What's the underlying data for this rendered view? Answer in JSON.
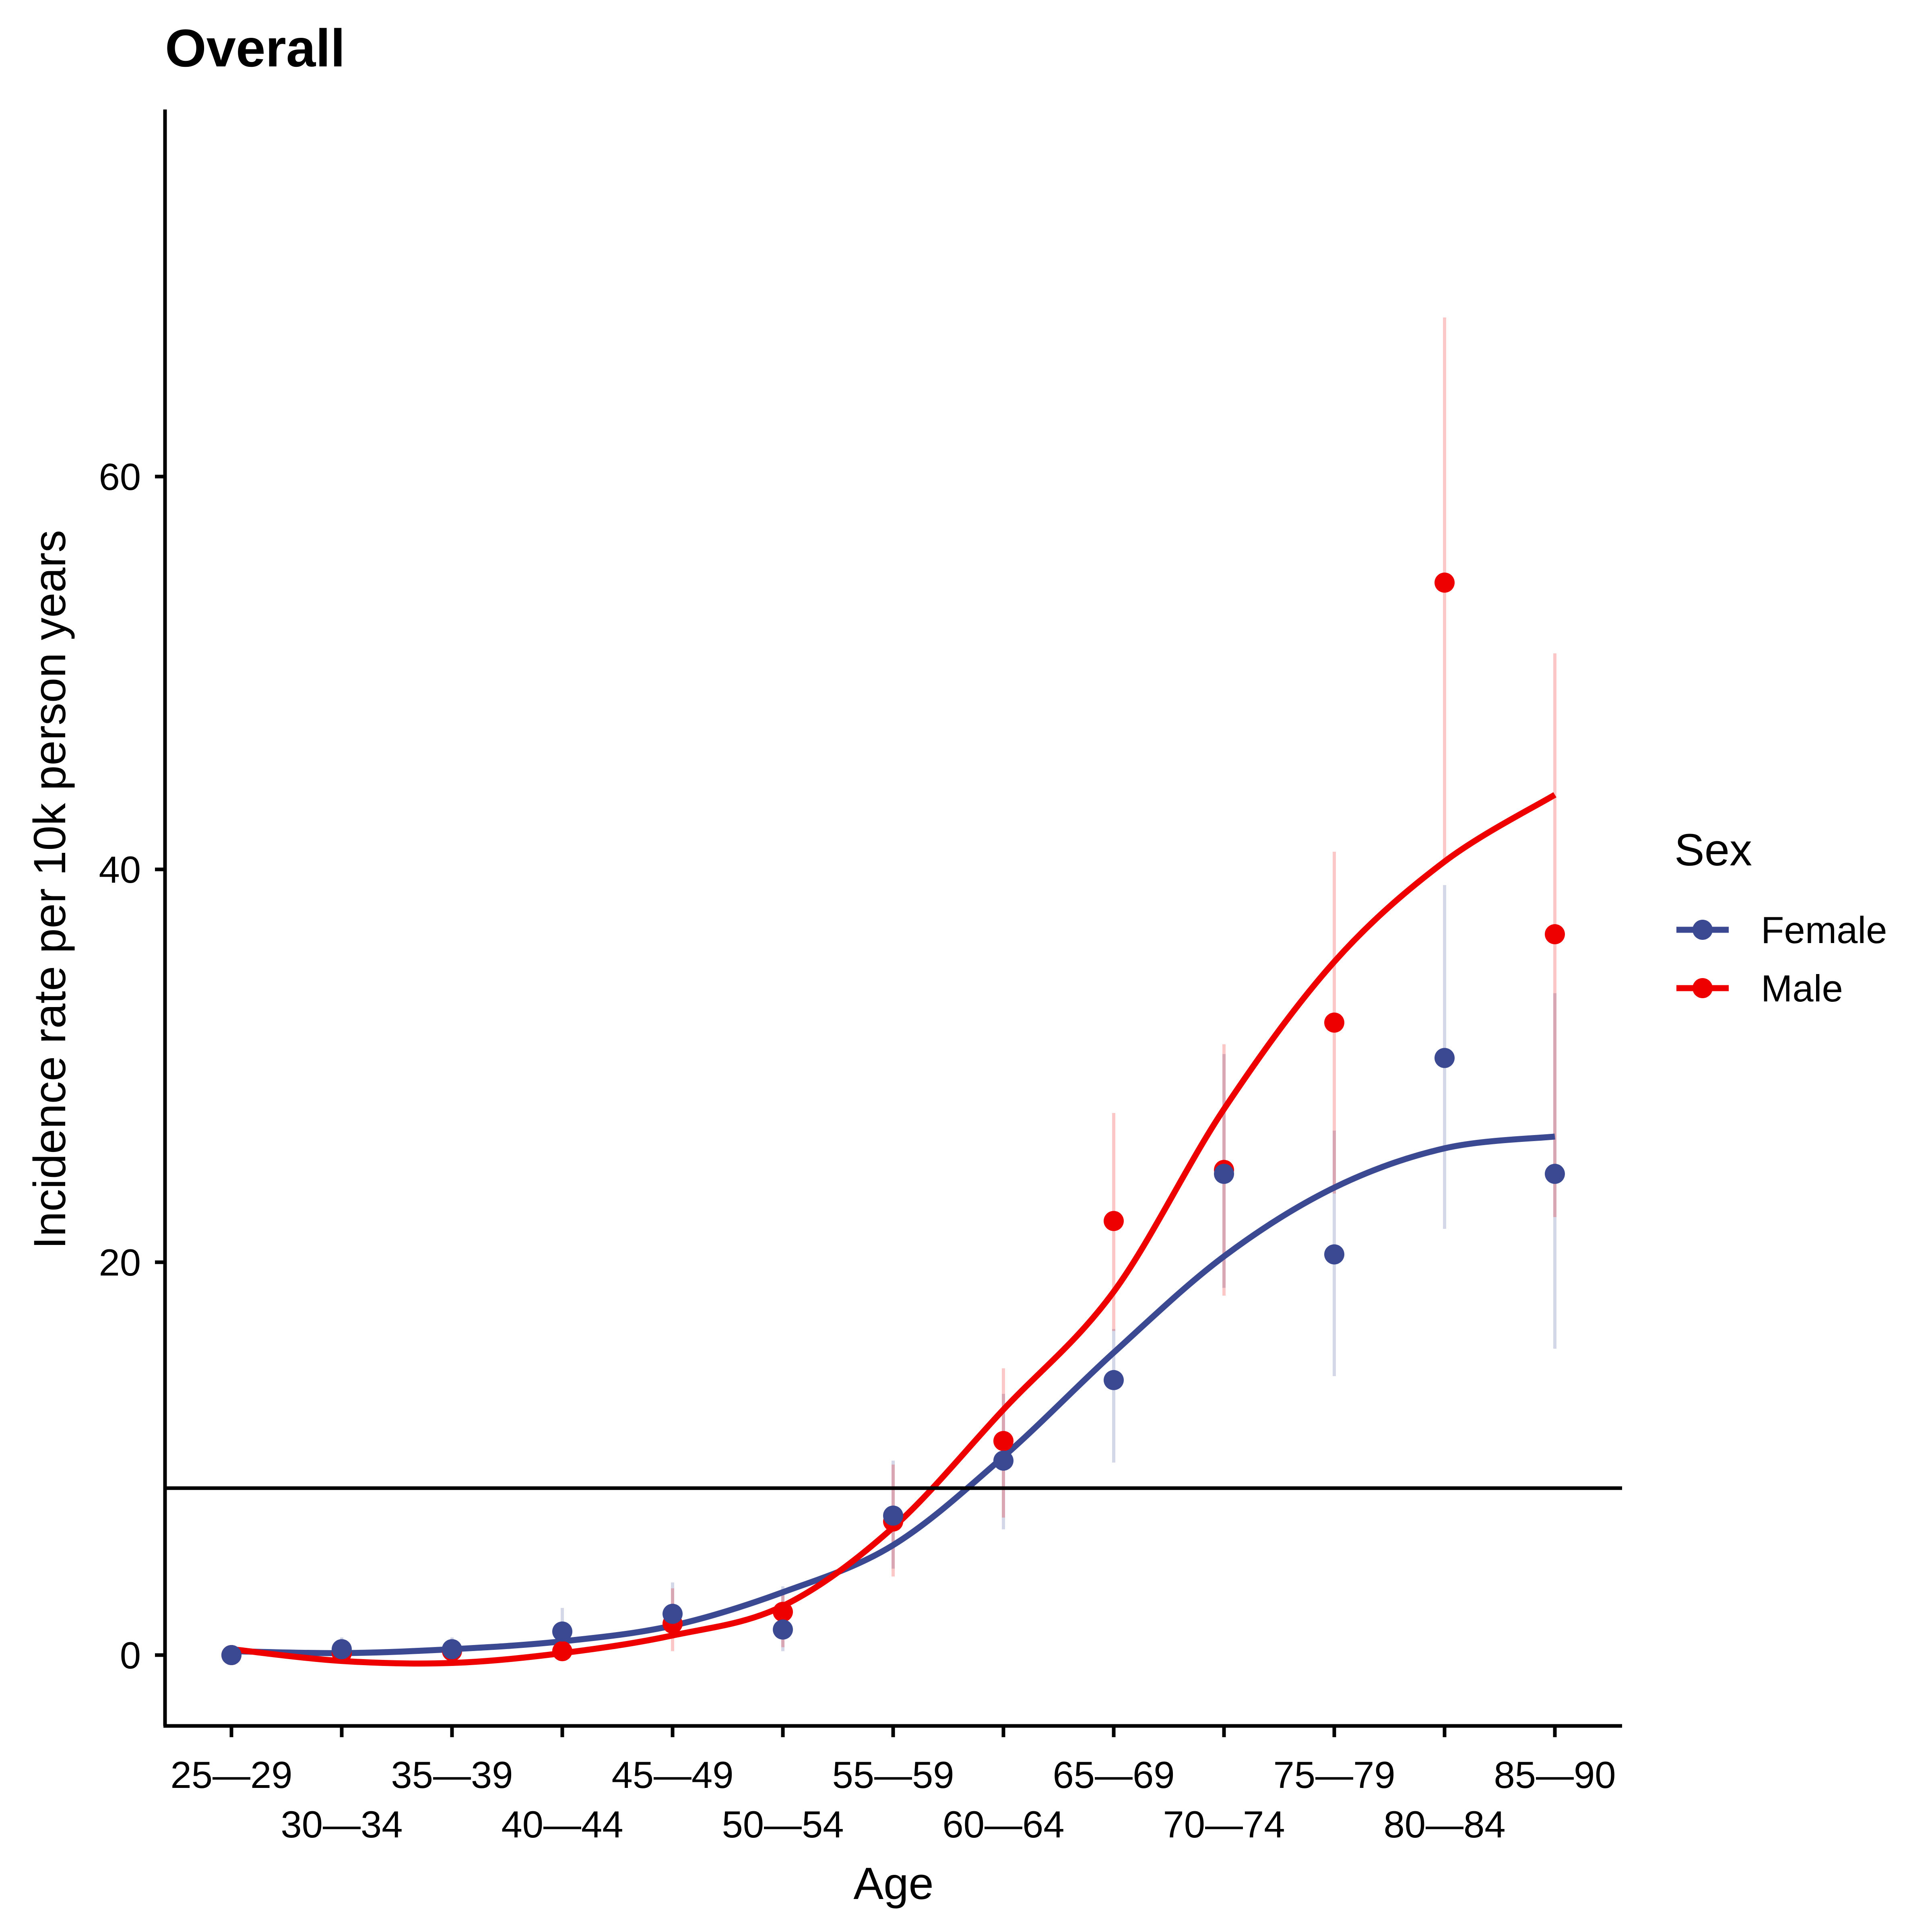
{
  "chart_data": {
    "type": "line",
    "title": "Overall",
    "xlabel": "Age",
    "ylabel": "Incidence rate per 10k person years",
    "categories": [
      "25—29",
      "30—34",
      "35—39",
      "40—44",
      "45—49",
      "50—54",
      "55—59",
      "60—64",
      "65—69",
      "70—74",
      "75—79",
      "80—84",
      "85—90"
    ],
    "yticks": [
      0,
      20,
      40,
      60
    ],
    "ylim": [
      -3.7,
      78.5
    ],
    "reference_line_y": 8.5,
    "grid": false,
    "legend": {
      "title": "Sex",
      "position": "right"
    },
    "series": [
      {
        "name": "Female",
        "color": "#3B4992",
        "points": [
          0.0,
          0.3,
          0.3,
          1.2,
          2.1,
          1.3,
          7.1,
          9.9,
          14.0,
          24.5,
          20.4,
          30.4,
          24.5
        ],
        "ci_low": [
          0.0,
          0.0,
          0.0,
          0.2,
          0.9,
          0.2,
          4.4,
          6.4,
          9.8,
          18.7,
          14.2,
          21.7,
          15.6
        ],
        "ci_high": [
          0.0,
          0.9,
          0.9,
          2.4,
          3.7,
          3.5,
          9.9,
          13.3,
          16.6,
          30.6,
          26.7,
          39.2,
          33.7
        ],
        "smooth": [
          0.2,
          0.1,
          0.3,
          0.7,
          1.5,
          3.2,
          5.6,
          10.1,
          15.4,
          20.3,
          23.8,
          25.8,
          26.4
        ]
      },
      {
        "name": "Male",
        "color": "#EE0000",
        "points": [
          0.0,
          0.1,
          0.2,
          0.2,
          1.6,
          2.2,
          6.8,
          10.9,
          22.1,
          24.7,
          32.2,
          54.6,
          36.7
        ],
        "ci_low": [
          0.0,
          0.0,
          0.0,
          0.0,
          0.2,
          0.4,
          4.0,
          7.0,
          16.5,
          18.3,
          23.5,
          40.3,
          22.3
        ],
        "ci_high": [
          0.0,
          0.4,
          0.5,
          1.0,
          3.4,
          3.3,
          9.7,
          14.6,
          27.6,
          31.1,
          40.9,
          68.1,
          51.0
        ],
        "smooth": [
          0.3,
          -0.3,
          -0.4,
          0.1,
          1.0,
          2.5,
          6.5,
          12.5,
          18.5,
          27.8,
          35.3,
          40.4,
          43.8
        ]
      }
    ]
  }
}
